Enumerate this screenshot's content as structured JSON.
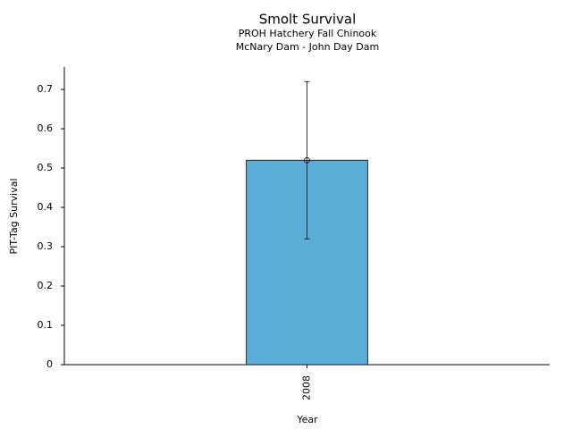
{
  "chart_data": {
    "type": "bar",
    "title": "Smolt Survival",
    "subtitle": [
      "PROH Hatchery Fall Chinook",
      "McNary Dam - John Day Dam"
    ],
    "xlabel": "Year",
    "ylabel": "PIT-Tag Survival",
    "categories": [
      "2008"
    ],
    "values": [
      0.52
    ],
    "errors": [
      0.2
    ],
    "color": "#5bacd6",
    "ylim": [
      0,
      0.757
    ],
    "yticks": [
      0,
      0.1,
      0.2,
      0.3,
      0.4,
      0.5,
      0.6,
      0.7
    ],
    "grid": false
  }
}
